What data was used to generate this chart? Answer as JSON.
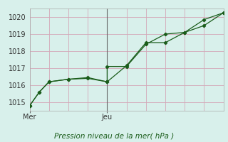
{
  "background_color": "#d8f0eb",
  "grid_color_h": "#d4a8b8",
  "grid_color_v": "#d4a8b8",
  "line_color": "#1a5c1a",
  "marker_color": "#1a5c1a",
  "title": "Pression niveau de la mer( hPa )",
  "xlabel_day_labels": [
    "Mer",
    "Jeu"
  ],
  "xlabel_day_positions": [
    0,
    8
  ],
  "ylim": [
    1014.5,
    1020.5
  ],
  "yticks": [
    1015,
    1016,
    1017,
    1018,
    1019,
    1020
  ],
  "series1_x": [
    0,
    1,
    2,
    4,
    6,
    8,
    8,
    10,
    12,
    14,
    16,
    18,
    20
  ],
  "series1_y": [
    1014.8,
    1015.6,
    1016.2,
    1016.35,
    1016.4,
    1016.2,
    1017.1,
    1017.1,
    1018.4,
    1019.0,
    1019.1,
    1019.85,
    1020.25
  ],
  "series2_x": [
    0,
    1,
    2,
    4,
    6,
    8,
    10,
    12,
    14,
    16,
    18,
    20
  ],
  "series2_y": [
    1014.8,
    1015.6,
    1016.2,
    1016.35,
    1016.45,
    1016.2,
    1017.15,
    1018.5,
    1018.5,
    1019.1,
    1019.5,
    1020.25
  ],
  "vline_x": 8,
  "xlim": [
    0,
    20
  ],
  "xtick_grid_positions": [
    0,
    2,
    4,
    6,
    8,
    10,
    12,
    14,
    16,
    18,
    20
  ]
}
